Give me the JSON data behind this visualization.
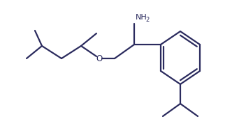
{
  "line_color": "#2b2b5e",
  "bg_color": "#ffffff",
  "line_width": 1.6,
  "figsize": [
    3.52,
    1.71
  ],
  "dpi": 100,
  "NH2_label": "NH",
  "NH2_sub": "2",
  "O_label": "O"
}
